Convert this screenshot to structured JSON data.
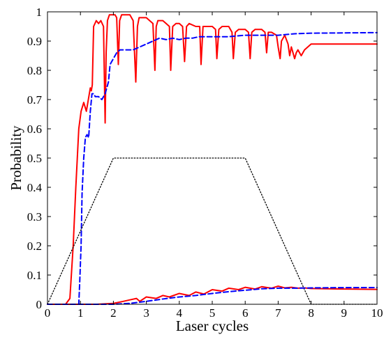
{
  "chart_data": {
    "type": "line",
    "title": "",
    "xlabel": "Laser cycles",
    "ylabel": "Probability",
    "xlim": [
      0,
      10
    ],
    "ylim": [
      0,
      1
    ],
    "xticks": [
      0,
      1,
      2,
      3,
      4,
      5,
      6,
      7,
      8,
      9,
      10
    ],
    "yticks": [
      0,
      0.1,
      0.2,
      0.3,
      0.4,
      0.5,
      0.6,
      0.7,
      0.8,
      0.9,
      1
    ],
    "xtick_labels": [
      "0",
      "1",
      "2",
      "3",
      "4",
      "5",
      "6",
      "7",
      "8",
      "9",
      "10"
    ],
    "ytick_labels": [
      "0",
      "0.1",
      "0.2",
      "0.3",
      "0.4",
      "0.5",
      "0.6",
      "0.7",
      "0.8",
      "0.9",
      "1"
    ],
    "grid": false,
    "legend": "none",
    "series": [
      {
        "color": "#ff0000",
        "dash": "solid",
        "x": [
          0,
          0.55,
          0.68,
          0.78,
          0.86,
          0.95,
          1.02,
          1.1,
          1.18,
          1.24,
          1.3,
          1.33,
          1.36,
          1.4,
          1.48,
          1.55,
          1.62,
          1.7,
          1.75,
          1.78,
          1.82,
          1.88,
          1.95,
          2.05,
          2.1,
          2.15,
          2.19,
          2.25,
          2.35,
          2.5,
          2.6,
          2.68,
          2.73,
          2.78,
          2.84,
          2.9,
          3.0,
          3.1,
          3.2,
          3.26,
          3.3,
          3.35,
          3.4,
          3.5,
          3.6,
          3.7,
          3.74,
          3.8,
          3.9,
          4.0,
          4.1,
          4.16,
          4.22,
          4.3,
          4.5,
          4.62,
          4.66,
          4.72,
          4.8,
          5.0,
          5.1,
          5.14,
          5.2,
          5.3,
          5.5,
          5.6,
          5.64,
          5.7,
          5.8,
          6.0,
          6.1,
          6.15,
          6.2,
          6.3,
          6.5,
          6.6,
          6.65,
          6.7,
          6.8,
          6.95,
          7.0,
          7.06,
          7.1,
          7.2,
          7.3,
          7.35,
          7.4,
          7.5,
          7.55,
          7.6,
          7.7,
          7.8,
          8.0,
          9.0,
          10.0
        ],
        "y": [
          0,
          0,
          0.02,
          0.2,
          0.4,
          0.6,
          0.66,
          0.69,
          0.66,
          0.7,
          0.74,
          0.73,
          0.75,
          0.95,
          0.97,
          0.96,
          0.97,
          0.95,
          0.62,
          0.86,
          0.97,
          0.99,
          0.99,
          0.99,
          0.98,
          0.82,
          0.97,
          0.99,
          0.99,
          0.99,
          0.97,
          0.76,
          0.95,
          0.98,
          0.98,
          0.98,
          0.98,
          0.97,
          0.96,
          0.8,
          0.95,
          0.97,
          0.97,
          0.97,
          0.96,
          0.95,
          0.8,
          0.95,
          0.96,
          0.96,
          0.95,
          0.83,
          0.95,
          0.96,
          0.95,
          0.95,
          0.82,
          0.95,
          0.95,
          0.95,
          0.94,
          0.84,
          0.94,
          0.95,
          0.95,
          0.93,
          0.84,
          0.93,
          0.94,
          0.94,
          0.93,
          0.84,
          0.93,
          0.94,
          0.94,
          0.93,
          0.86,
          0.93,
          0.93,
          0.92,
          0.88,
          0.84,
          0.9,
          0.92,
          0.89,
          0.85,
          0.88,
          0.84,
          0.86,
          0.87,
          0.85,
          0.87,
          0.89,
          0.89,
          0.89
        ]
      },
      {
        "color": "#0000ff",
        "dash": "dashed",
        "x": [
          0,
          0.95,
          0.98,
          1.02,
          1.05,
          1.1,
          1.15,
          1.2,
          1.25,
          1.3,
          1.35,
          1.4,
          1.45,
          1.55,
          1.65,
          1.75,
          1.85,
          1.9,
          2.0,
          2.1,
          2.2,
          2.3,
          2.4,
          2.6,
          2.8,
          3.0,
          3.2,
          3.4,
          3.6,
          3.8,
          4.0,
          4.2,
          4.4,
          4.6,
          5.0,
          5.5,
          6.0,
          6.5,
          7.0,
          7.5,
          8.0,
          9.0,
          10.0
        ],
        "y": [
          0,
          0,
          0.08,
          0.2,
          0.38,
          0.5,
          0.57,
          0.58,
          0.57,
          0.66,
          0.72,
          0.72,
          0.71,
          0.71,
          0.7,
          0.72,
          0.76,
          0.82,
          0.84,
          0.86,
          0.87,
          0.87,
          0.87,
          0.87,
          0.88,
          0.89,
          0.9,
          0.91,
          0.905,
          0.91,
          0.905,
          0.91,
          0.91,
          0.915,
          0.915,
          0.915,
          0.92,
          0.92,
          0.92,
          0.925,
          0.927,
          0.928,
          0.929
        ]
      },
      {
        "color": "#000000",
        "dash": "dotted",
        "x": [
          0,
          2,
          6,
          8,
          10
        ],
        "y": [
          0,
          0.5,
          0.5,
          0,
          0
        ]
      },
      {
        "color": "#ff0000",
        "dash": "solid",
        "x": [
          0,
          1.5,
          2.0,
          2.3,
          2.5,
          2.7,
          2.8,
          3.0,
          3.3,
          3.5,
          3.7,
          4.0,
          4.3,
          4.5,
          4.75,
          5.0,
          5.3,
          5.5,
          5.8,
          6.0,
          6.3,
          6.5,
          6.8,
          7.0,
          7.2,
          7.4,
          7.6,
          7.8,
          8.0,
          9.0,
          10.0
        ],
        "y": [
          0,
          0,
          0.003,
          0.01,
          0.015,
          0.02,
          0.01,
          0.025,
          0.02,
          0.03,
          0.025,
          0.037,
          0.03,
          0.042,
          0.035,
          0.05,
          0.045,
          0.055,
          0.05,
          0.058,
          0.052,
          0.06,
          0.055,
          0.062,
          0.056,
          0.058,
          0.055,
          0.056,
          0.054,
          0.052,
          0.051
        ]
      },
      {
        "color": "#0000ff",
        "dash": "dashed",
        "x": [
          0,
          2.0,
          2.5,
          3.0,
          3.5,
          4.0,
          4.5,
          5.0,
          5.5,
          6.0,
          6.5,
          7.0,
          7.5,
          8.0,
          9.0,
          10.0
        ],
        "y": [
          0,
          0,
          0.003,
          0.01,
          0.018,
          0.025,
          0.03,
          0.037,
          0.043,
          0.048,
          0.053,
          0.055,
          0.055,
          0.056,
          0.057,
          0.057
        ]
      }
    ]
  }
}
